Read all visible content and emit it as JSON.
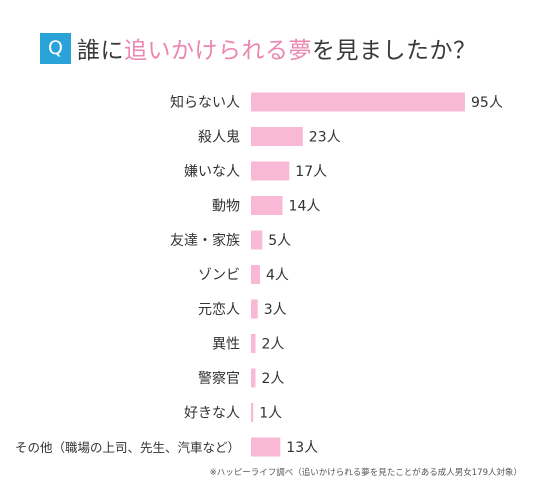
{
  "title": {
    "badge": "Q",
    "prefix": "誰に",
    "highlight": "追いかけられる夢",
    "suffix": "を見ましたか？"
  },
  "footnote": "※ハッピーライフ調べ（追いかけられる夢を見たことがある成人男女179人対象）",
  "colors": {
    "bar": "#f9b8d6",
    "badge": "#2aa3d9",
    "highlight": "#ec86b0"
  },
  "chart_data": {
    "type": "bar",
    "orientation": "horizontal",
    "title": "誰に追いかけられる夢を見ましたか？",
    "unit": "人",
    "categories": [
      "知らない人",
      "殺人鬼",
      "嫌いな人",
      "動物",
      "友達・家族",
      "ゾンビ",
      "元恋人",
      "異性",
      "警察官",
      "好きな人",
      "その他（職場の上司、先生、汽車など）"
    ],
    "values": [
      95,
      23,
      17,
      14,
      5,
      4,
      3,
      2,
      2,
      1,
      13
    ],
    "value_labels": [
      "95人",
      "23人",
      "17人",
      "14人",
      "5人",
      "4人",
      "3人",
      "2人",
      "2人",
      "1人",
      "13人"
    ],
    "xlim": [
      0,
      95
    ],
    "grid": false,
    "legend": "none"
  }
}
